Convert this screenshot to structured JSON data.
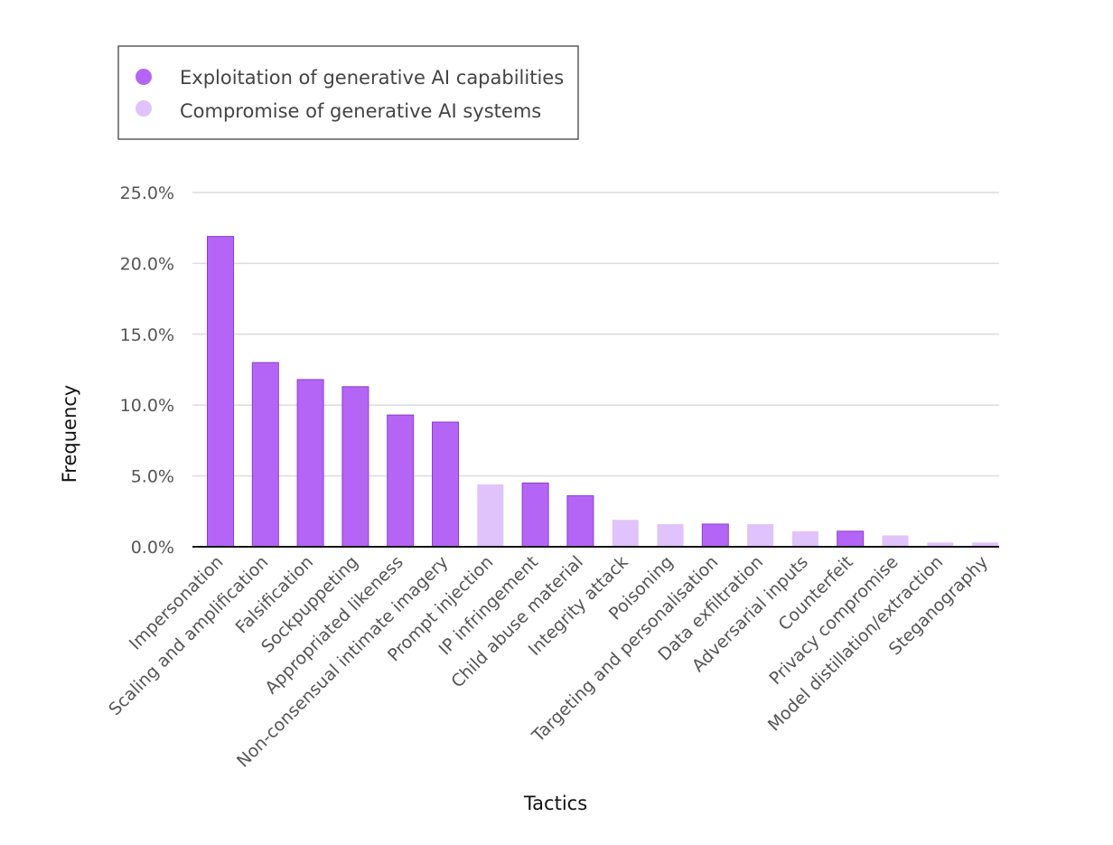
{
  "chart_data": {
    "type": "bar",
    "xlabel": "Tactics",
    "ylabel": "Frequency",
    "ylim": [
      0,
      25
    ],
    "yticks": [
      "0.0%",
      "5.0%",
      "10.0%",
      "15.0%",
      "20.0%",
      "25.0%"
    ],
    "grid": true,
    "legend_position": "top-left",
    "series": [
      {
        "name": "Exploitation of generative AI capabilities",
        "color": "#b565f5"
      },
      {
        "name": "Compromise of generative AI systems",
        "color": "#dfc3fa"
      }
    ],
    "categories": [
      "Impersonation",
      "Scaling and amplification",
      "Falsification",
      "Sockpuppeting",
      "Appropriated likeness",
      "Non-consensual intimate imagery",
      "Prompt injection",
      "IP infringement",
      "Child abuse material",
      "Integrity attack",
      "Poisoning",
      "Targeting and personalisation",
      "Data exfiltration",
      "Adversarial inputs",
      "Counterfeit",
      "Privacy compromise",
      "Model distillation/extraction",
      "Steganography"
    ],
    "values": [
      21.9,
      13.0,
      11.8,
      11.3,
      9.3,
      8.8,
      4.4,
      4.5,
      3.6,
      1.9,
      1.6,
      1.6,
      1.6,
      1.1,
      1.1,
      0.8,
      0.3,
      0.3
    ],
    "series_index": [
      0,
      0,
      0,
      0,
      0,
      0,
      1,
      0,
      0,
      1,
      1,
      0,
      1,
      1,
      0,
      1,
      1,
      1
    ]
  }
}
